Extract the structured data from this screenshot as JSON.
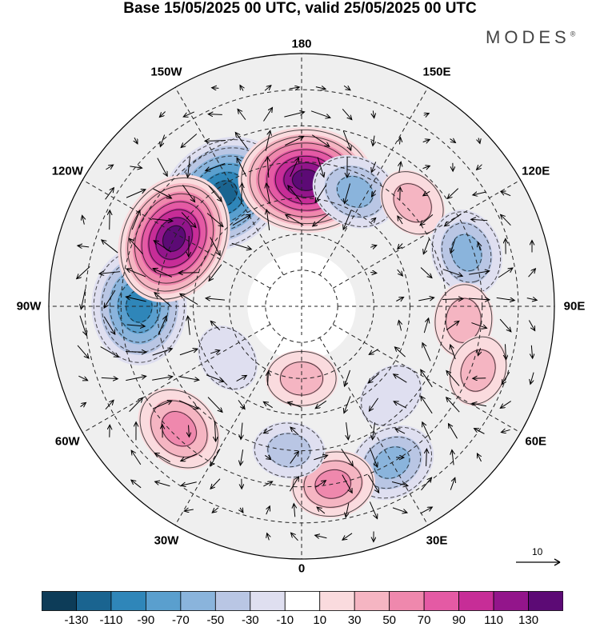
{
  "title": "Base 15/05/2025 00 UTC, valid 25/05/2025 00 UTC",
  "brand": "MODES",
  "brand_mark": "®",
  "longitude_labels": [
    {
      "text": "180",
      "lon": 180
    },
    {
      "text": "150E",
      "lon": 150
    },
    {
      "text": "120E",
      "lon": 120
    },
    {
      "text": "90E",
      "lon": 90
    },
    {
      "text": "60E",
      "lon": 60
    },
    {
      "text": "30E",
      "lon": 30
    },
    {
      "text": "0",
      "lon": 0
    },
    {
      "text": "30W",
      "lon": -30
    },
    {
      "text": "60W",
      "lon": -60
    },
    {
      "text": "90W",
      "lon": -90
    },
    {
      "text": "120W",
      "lon": -120
    },
    {
      "text": "150W",
      "lon": -150
    }
  ],
  "reference_vector_label": "10",
  "colorbar": {
    "colors": [
      "#0d3c58",
      "#1a6490",
      "#2f86b9",
      "#5a9fce",
      "#8ab4dc",
      "#b9c6e4",
      "#dfdff0",
      "#ffffff",
      "#fadbde",
      "#f5b5c2",
      "#ef88ad",
      "#e45aa4",
      "#c72d97",
      "#93158b",
      "#5c0a75"
    ],
    "tick_labels": [
      "-130",
      "-110",
      "-90",
      "-70",
      "-50",
      "-30",
      "-10",
      "10",
      "30",
      "50",
      "70",
      "90",
      "110",
      "130"
    ]
  },
  "anomaly_centers": [
    {
      "lon": -145,
      "lat": 52,
      "value": -125,
      "sign": "negative"
    },
    {
      "lon": 178,
      "lat": 55,
      "value": 135,
      "sign": "positive"
    },
    {
      "lon": 155,
      "lat": 55,
      "value": -55,
      "sign": "negative"
    },
    {
      "lon": 133,
      "lat": 48,
      "value": 30,
      "sign": "positive"
    },
    {
      "lon": 108,
      "lat": 42,
      "value": -55,
      "sign": "negative"
    },
    {
      "lon": 85,
      "lat": 45,
      "value": 35,
      "sign": "positive"
    },
    {
      "lon": 70,
      "lat": 38,
      "value": 30,
      "sign": "positive"
    },
    {
      "lon": 45,
      "lat": 55,
      "value": -25,
      "sign": "negative"
    },
    {
      "lon": 30,
      "lat": 40,
      "value": -55,
      "sign": "negative"
    },
    {
      "lon": 10,
      "lat": 40,
      "value": 50,
      "sign": "positive"
    },
    {
      "lon": -5,
      "lat": 50,
      "value": -30,
      "sign": "negative"
    },
    {
      "lon": 0,
      "lat": 70,
      "value": 30,
      "sign": "positive"
    },
    {
      "lon": -45,
      "lat": 42,
      "value": 60,
      "sign": "positive"
    },
    {
      "lon": -90,
      "lat": 45,
      "value": -105,
      "sign": "negative"
    },
    {
      "lon": -118,
      "lat": 50,
      "value": 130,
      "sign": "positive"
    },
    {
      "lon": -55,
      "lat": 65,
      "value": -25,
      "sign": "negative"
    }
  ]
}
